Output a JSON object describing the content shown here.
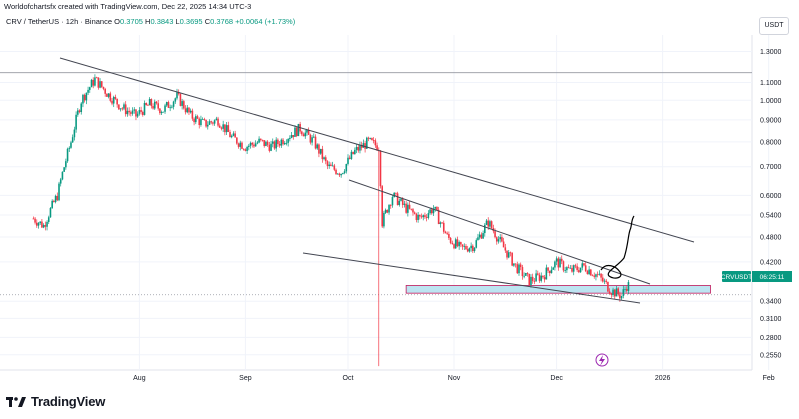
{
  "header": {
    "caption": "Worldofchartsfx created with TradingView.com, Dec 22, 2025 14:34 UTC-3",
    "symbol_line": "CRV / TetherUS · 12h · Binance",
    "ohlc": {
      "o_label": "O",
      "o": "0.3705",
      "h_label": "H",
      "h": "0.3843",
      "l_label": "L",
      "l": "0.3695",
      "c_label": "C",
      "c": "0.3768",
      "change": "+0.0064 (+1.73%)"
    },
    "currency_button": "USDT"
  },
  "footer": {
    "brand": "TradingView"
  },
  "colors": {
    "up": "#089981",
    "down": "#f23645",
    "zone_fill": "#b2dfee",
    "zone_border": "#c2185b",
    "trend": "#434651"
  },
  "price_label": {
    "symbol": "CRVUSDT",
    "time": "06:25:11"
  },
  "chart_data": {
    "type": "candlestick",
    "yscale": "log",
    "ylim": [
      0.235,
      1.42
    ],
    "x_ticks": [
      "Aug",
      "Sep",
      "Oct",
      "Nov",
      "Dec",
      "2026",
      "Feb"
    ],
    "y_ticks": [
      "1.3000",
      "1.1000",
      "1.0000",
      "0.9000",
      "0.8000",
      "0.7000",
      "0.6000",
      "0.5400",
      "0.4800",
      "0.4200",
      "0.3400",
      "0.3100",
      "0.2800",
      "0.2550"
    ],
    "last_price": 0.3768,
    "horizontal_line": 1.16,
    "dotted_line": 0.352,
    "zone": {
      "from": "2025-10-18",
      "to": "2026-01-15",
      "low": 0.355,
      "high": 0.37
    },
    "close_path": [
      [
        "2025-07-01",
        0.53
      ],
      [
        "2025-07-04",
        0.51
      ],
      [
        "2025-07-08",
        0.6
      ],
      [
        "2025-07-12",
        0.8
      ],
      [
        "2025-07-15",
        1.0
      ],
      [
        "2025-07-19",
        1.12
      ],
      [
        "2025-07-23",
        1.03
      ],
      [
        "2025-07-27",
        0.96
      ],
      [
        "2025-07-31",
        0.92
      ],
      [
        "2025-08-04",
        0.98
      ],
      [
        "2025-08-08",
        0.95
      ],
      [
        "2025-08-12",
        1.02
      ],
      [
        "2025-08-16",
        0.92
      ],
      [
        "2025-08-20",
        0.88
      ],
      [
        "2025-08-24",
        0.9
      ],
      [
        "2025-08-28",
        0.82
      ],
      [
        "2025-09-01",
        0.78
      ],
      [
        "2025-09-05",
        0.8
      ],
      [
        "2025-09-09",
        0.78
      ],
      [
        "2025-09-13",
        0.82
      ],
      [
        "2025-09-17",
        0.86
      ],
      [
        "2025-09-21",
        0.8
      ],
      [
        "2025-09-25",
        0.7
      ],
      [
        "2025-09-29",
        0.68
      ],
      [
        "2025-10-03",
        0.76
      ],
      [
        "2025-10-07",
        0.8
      ],
      [
        "2025-10-10",
        0.78
      ],
      [
        "2025-10-11",
        0.52
      ],
      [
        "2025-10-14",
        0.6
      ],
      [
        "2025-10-18",
        0.56
      ],
      [
        "2025-10-22",
        0.53
      ],
      [
        "2025-10-26",
        0.56
      ],
      [
        "2025-10-30",
        0.48
      ],
      [
        "2025-11-03",
        0.45
      ],
      [
        "2025-11-07",
        0.46
      ],
      [
        "2025-11-11",
        0.52
      ],
      [
        "2025-11-15",
        0.46
      ],
      [
        "2025-11-19",
        0.41
      ],
      [
        "2025-11-23",
        0.38
      ],
      [
        "2025-11-27",
        0.39
      ],
      [
        "2025-12-01",
        0.42
      ],
      [
        "2025-12-05",
        0.4
      ],
      [
        "2025-12-09",
        0.41
      ],
      [
        "2025-12-13",
        0.39
      ],
      [
        "2025-12-17",
        0.36
      ],
      [
        "2025-12-20",
        0.35
      ],
      [
        "2025-12-22",
        0.3768
      ]
    ],
    "flash_wick": {
      "date": "2025-10-10",
      "low": 0.24
    }
  }
}
